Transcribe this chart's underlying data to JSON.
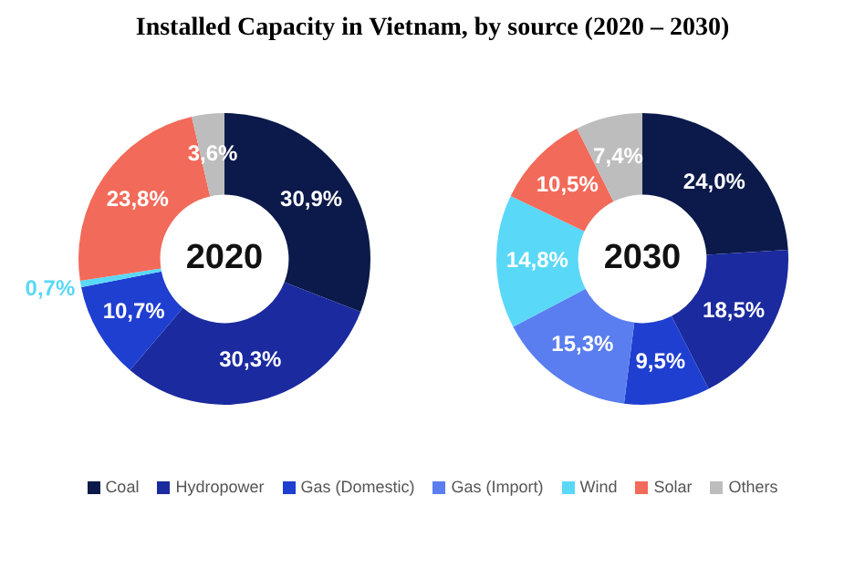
{
  "chart_data": {
    "type": "donut",
    "title": "Installed Capacity in Vietnam, by source (2020 – 2030)",
    "legend": "bottom",
    "categories": [
      "Coal",
      "Hydropower",
      "Gas (Domestic)",
      "Gas (Import)",
      "Wind",
      "Solar",
      "Others"
    ],
    "colors": [
      "#0b1a4a",
      "#1b2a9e",
      "#1f3fd0",
      "#5a7ef0",
      "#5ad8f8",
      "#f26a5a",
      "#bdbdbd"
    ],
    "series": [
      {
        "name": "2020",
        "values": [
          30.9,
          30.3,
          10.7,
          0,
          0.7,
          23.8,
          3.6
        ],
        "value_labels": [
          "30,9%",
          "30,3%",
          "10,7%",
          null,
          "0,7%",
          "23,8%",
          "3,6%"
        ]
      },
      {
        "name": "2030",
        "values": [
          24.0,
          18.5,
          9.5,
          15.3,
          14.8,
          10.5,
          7.4
        ],
        "value_labels": [
          "24,0%",
          "18,5%",
          "9,5%",
          "15,3%",
          "14,8%",
          "10,5%",
          "7,4%"
        ]
      }
    ]
  }
}
